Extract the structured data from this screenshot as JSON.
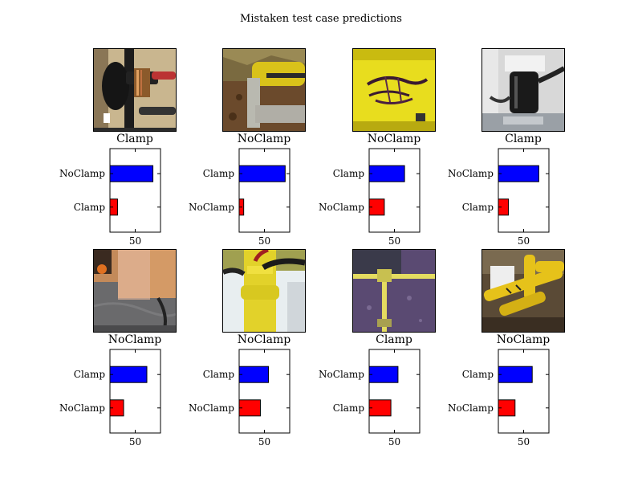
{
  "figure": {
    "title": "Mistaken test case predictions"
  },
  "chart_data": [
    {
      "type": "bar",
      "orientation": "horizontal",
      "title": "Clamp",
      "photo": "black-and-brown-pipe-fitting",
      "categories": [
        "Clamp",
        "NoClamp"
      ],
      "values": [
        15,
        85
      ],
      "colors": [
        "#ff0000",
        "#0000ff"
      ],
      "xlim": [
        0,
        100
      ],
      "xticks": [
        50
      ]
    },
    {
      "type": "bar",
      "orientation": "horizontal",
      "title": "NoClamp",
      "photo": "yellow-pipe-in-dirt",
      "categories": [
        "NoClamp",
        "Clamp"
      ],
      "values": [
        9,
        91
      ],
      "colors": [
        "#ff0000",
        "#0000ff"
      ],
      "xlim": [
        0,
        100
      ],
      "xticks": [
        50
      ]
    },
    {
      "type": "bar",
      "orientation": "horizontal",
      "title": "NoClamp",
      "photo": "yellow-pipe-with-marker",
      "categories": [
        "NoClamp",
        "Clamp"
      ],
      "values": [
        30,
        70
      ],
      "colors": [
        "#ff0000",
        "#0000ff"
      ],
      "xlim": [
        0,
        100
      ],
      "xticks": [
        50
      ]
    },
    {
      "type": "bar",
      "orientation": "horizontal",
      "title": "Clamp",
      "photo": "white-coupling-with-black-fitting",
      "categories": [
        "Clamp",
        "NoClamp"
      ],
      "values": [
        20,
        80
      ],
      "colors": [
        "#ff0000",
        "#0000ff"
      ],
      "xlim": [
        0,
        100
      ],
      "xticks": [
        50
      ]
    },
    {
      "type": "bar",
      "orientation": "horizontal",
      "title": "NoClamp",
      "photo": "floor-with-orange-board",
      "categories": [
        "NoClamp",
        "Clamp"
      ],
      "values": [
        27,
        73
      ],
      "colors": [
        "#ff0000",
        "#0000ff"
      ],
      "xlim": [
        0,
        100
      ],
      "xticks": [
        50
      ]
    },
    {
      "type": "bar",
      "orientation": "horizontal",
      "title": "NoClamp",
      "photo": "yellow-pipe-with-black-hoses",
      "categories": [
        "NoClamp",
        "Clamp"
      ],
      "values": [
        42,
        58
      ],
      "colors": [
        "#ff0000",
        "#0000ff"
      ],
      "xlim": [
        0,
        100
      ],
      "xticks": [
        50
      ]
    },
    {
      "type": "bar",
      "orientation": "horizontal",
      "title": "Clamp",
      "photo": "yellow-pipe-on-purple-ground",
      "categories": [
        "Clamp",
        "NoClamp"
      ],
      "values": [
        43,
        57
      ],
      "colors": [
        "#ff0000",
        "#0000ff"
      ],
      "xlim": [
        0,
        100
      ],
      "xticks": [
        50
      ]
    },
    {
      "type": "bar",
      "orientation": "horizontal",
      "title": "NoClamp",
      "photo": "yellow-pipes-in-excavation",
      "categories": [
        "NoClamp",
        "Clamp"
      ],
      "values": [
        33,
        67
      ],
      "colors": [
        "#ff0000",
        "#0000ff"
      ],
      "xlim": [
        0,
        100
      ],
      "xticks": [
        50
      ]
    }
  ]
}
